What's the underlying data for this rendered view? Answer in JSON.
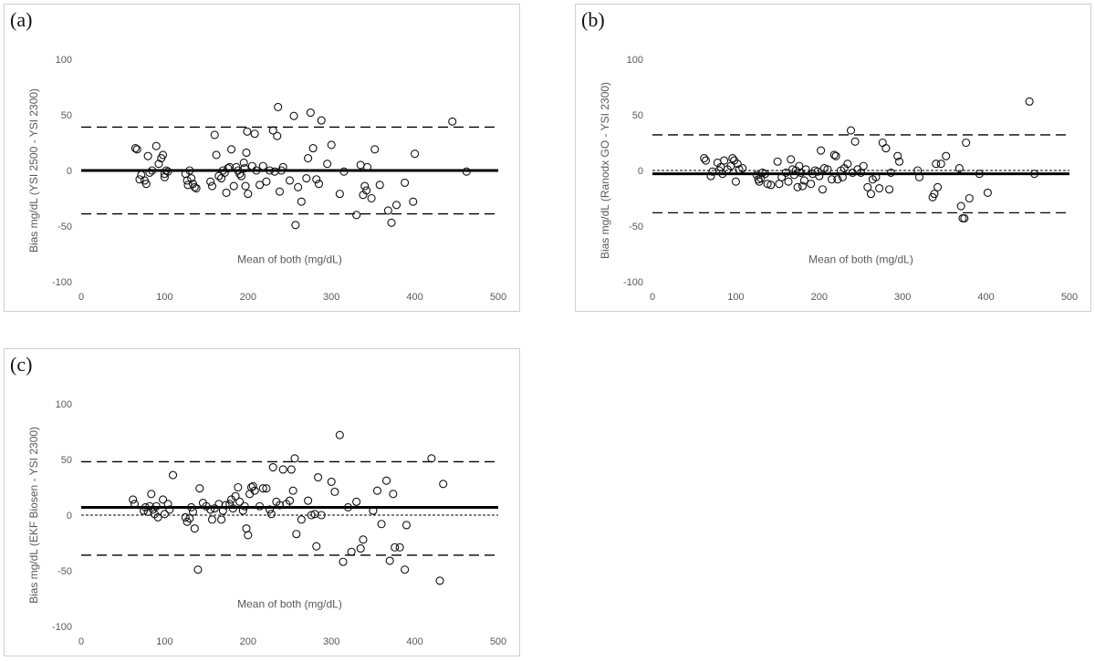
{
  "chart_data": [
    {
      "type": "scatter",
      "panel_label": "(a)",
      "xlabel": "Mean of both (mg/dL)",
      "ylabel": "Bias mg/dL (YSI  2500 - YSI 2300)",
      "xlim": [
        0,
        500
      ],
      "ylim": [
        -100,
        100
      ],
      "xticks": [
        "0",
        "100",
        "200",
        "300",
        "400",
        "500"
      ],
      "yticks": [
        "100",
        "50",
        "0",
        "-50",
        "-100"
      ],
      "reference_lines": [
        {
          "value": 0,
          "style": "solid-thick"
        },
        {
          "value": 39,
          "style": "dashed"
        },
        {
          "value": -39,
          "style": "dashed"
        }
      ],
      "points": [
        [
          65,
          20
        ],
        [
          67,
          19
        ],
        [
          70,
          -8
        ],
        [
          72,
          -4
        ],
        [
          76,
          -9
        ],
        [
          78,
          -12
        ],
        [
          80,
          13
        ],
        [
          82,
          -2
        ],
        [
          85,
          0
        ],
        [
          90,
          22
        ],
        [
          93,
          6
        ],
        [
          96,
          11
        ],
        [
          98,
          14
        ],
        [
          100,
          -3
        ],
        [
          100,
          -6
        ],
        [
          102,
          0
        ],
        [
          104,
          -1
        ],
        [
          125,
          -3
        ],
        [
          127,
          -9
        ],
        [
          128,
          -13
        ],
        [
          130,
          0
        ],
        [
          132,
          -7
        ],
        [
          134,
          -12
        ],
        [
          136,
          -15
        ],
        [
          138,
          -16
        ],
        [
          155,
          -10
        ],
        [
          157,
          -14
        ],
        [
          160,
          32
        ],
        [
          162,
          14
        ],
        [
          165,
          -5
        ],
        [
          168,
          -7
        ],
        [
          170,
          0
        ],
        [
          172,
          -2
        ],
        [
          174,
          -20
        ],
        [
          176,
          2
        ],
        [
          178,
          3
        ],
        [
          180,
          19
        ],
        [
          183,
          -14
        ],
        [
          186,
          3
        ],
        [
          188,
          0
        ],
        [
          190,
          -3
        ],
        [
          192,
          -5
        ],
        [
          195,
          7
        ],
        [
          196,
          2
        ],
        [
          197,
          -14
        ],
        [
          198,
          16
        ],
        [
          199,
          35
        ],
        [
          200,
          -21
        ],
        [
          205,
          4
        ],
        [
          208,
          33
        ],
        [
          210,
          0
        ],
        [
          214,
          -13
        ],
        [
          218,
          4
        ],
        [
          222,
          -10
        ],
        [
          226,
          0
        ],
        [
          230,
          36
        ],
        [
          232,
          -1
        ],
        [
          235,
          31
        ],
        [
          236,
          57
        ],
        [
          238,
          -19
        ],
        [
          240,
          0
        ],
        [
          242,
          3
        ],
        [
          250,
          -9
        ],
        [
          255,
          49
        ],
        [
          257,
          -49
        ],
        [
          260,
          -15
        ],
        [
          264,
          -28
        ],
        [
          270,
          -7
        ],
        [
          272,
          11
        ],
        [
          275,
          52
        ],
        [
          278,
          20
        ],
        [
          282,
          -8
        ],
        [
          285,
          -12
        ],
        [
          288,
          45
        ],
        [
          295,
          6
        ],
        [
          300,
          23
        ],
        [
          310,
          -21
        ],
        [
          315,
          -1
        ],
        [
          330,
          -40
        ],
        [
          335,
          5
        ],
        [
          338,
          -22
        ],
        [
          340,
          -14
        ],
        [
          342,
          -18
        ],
        [
          343,
          3
        ],
        [
          348,
          -25
        ],
        [
          352,
          19
        ],
        [
          358,
          -13
        ],
        [
          368,
          -36
        ],
        [
          372,
          -47
        ],
        [
          378,
          -31
        ],
        [
          388,
          -11
        ],
        [
          398,
          -28
        ],
        [
          400,
          15
        ],
        [
          445,
          44
        ],
        [
          462,
          -1
        ]
      ]
    },
    {
      "type": "scatter",
      "panel_label": "(b)",
      "xlabel": "Mean of both (mg/dL)",
      "ylabel": "Bias mg/dL (Ranodx GO - YSI 2300)",
      "xlim": [
        0,
        500
      ],
      "ylim": [
        -100,
        100
      ],
      "xticks": [
        "0",
        "100",
        "200",
        "300",
        "400",
        "500"
      ],
      "yticks": [
        "100",
        "50",
        "0",
        "-50",
        "-100"
      ],
      "reference_lines": [
        {
          "value": -3,
          "style": "solid-thick"
        },
        {
          "value": 0,
          "style": "dotted"
        },
        {
          "value": 32,
          "style": "dashed"
        },
        {
          "value": -38,
          "style": "dashed"
        }
      ],
      "points": [
        [
          62,
          11
        ],
        [
          64,
          9
        ],
        [
          70,
          -5
        ],
        [
          72,
          -1
        ],
        [
          78,
          7
        ],
        [
          80,
          0
        ],
        [
          82,
          3
        ],
        [
          84,
          -3
        ],
        [
          86,
          9
        ],
        [
          90,
          1
        ],
        [
          94,
          4
        ],
        [
          96,
          11
        ],
        [
          98,
          9
        ],
        [
          100,
          -10
        ],
        [
          102,
          6
        ],
        [
          104,
          1
        ],
        [
          108,
          2
        ],
        [
          125,
          -4
        ],
        [
          127,
          -8
        ],
        [
          128,
          -10
        ],
        [
          130,
          -7
        ],
        [
          132,
          -2
        ],
        [
          135,
          -3
        ],
        [
          138,
          -12
        ],
        [
          142,
          -13
        ],
        [
          150,
          8
        ],
        [
          152,
          -12
        ],
        [
          155,
          -6
        ],
        [
          160,
          -2
        ],
        [
          163,
          -10
        ],
        [
          166,
          10
        ],
        [
          168,
          1
        ],
        [
          170,
          -4
        ],
        [
          172,
          0
        ],
        [
          174,
          -15
        ],
        [
          176,
          4
        ],
        [
          178,
          -2
        ],
        [
          180,
          -14
        ],
        [
          182,
          -9
        ],
        [
          184,
          1
        ],
        [
          190,
          -12
        ],
        [
          192,
          -3
        ],
        [
          195,
          0
        ],
        [
          198,
          -1
        ],
        [
          200,
          -5
        ],
        [
          202,
          18
        ],
        [
          204,
          -17
        ],
        [
          206,
          2
        ],
        [
          210,
          1
        ],
        [
          215,
          -8
        ],
        [
          218,
          14
        ],
        [
          220,
          13
        ],
        [
          222,
          -8
        ],
        [
          226,
          0
        ],
        [
          228,
          -6
        ],
        [
          230,
          2
        ],
        [
          234,
          6
        ],
        [
          238,
          36
        ],
        [
          240,
          -2
        ],
        [
          243,
          26
        ],
        [
          246,
          1
        ],
        [
          250,
          -2
        ],
        [
          253,
          4
        ],
        [
          258,
          -15
        ],
        [
          262,
          -21
        ],
        [
          264,
          -8
        ],
        [
          268,
          -6
        ],
        [
          272,
          -16
        ],
        [
          276,
          25
        ],
        [
          280,
          20
        ],
        [
          284,
          -17
        ],
        [
          286,
          -2
        ],
        [
          294,
          13
        ],
        [
          296,
          8
        ],
        [
          318,
          0
        ],
        [
          320,
          -6
        ],
        [
          336,
          -24
        ],
        [
          338,
          -21
        ],
        [
          340,
          6
        ],
        [
          342,
          -15
        ],
        [
          346,
          6
        ],
        [
          352,
          13
        ],
        [
          368,
          2
        ],
        [
          370,
          -32
        ],
        [
          372,
          -43
        ],
        [
          374,
          -43
        ],
        [
          376,
          25
        ],
        [
          380,
          -25
        ],
        [
          392,
          -3
        ],
        [
          402,
          -20
        ],
        [
          452,
          62
        ],
        [
          458,
          -3
        ]
      ]
    },
    {
      "type": "scatter",
      "panel_label": "(c)",
      "xlabel": "Mean of both (mg/dL)",
      "ylabel": "Bias mg/dL (EKF Biosen - YSI 2300)",
      "xlim": [
        0,
        500
      ],
      "ylim": [
        -100,
        100
      ],
      "xticks": [
        "0",
        "100",
        "200",
        "300",
        "400",
        "500"
      ],
      "yticks": [
        "100",
        "50",
        "0",
        "-50",
        "-100"
      ],
      "reference_lines": [
        {
          "value": 7,
          "style": "solid-thick"
        },
        {
          "value": 0,
          "style": "dotted"
        },
        {
          "value": 48,
          "style": "dashed"
        },
        {
          "value": -36,
          "style": "dashed"
        }
      ],
      "points": [
        [
          62,
          14
        ],
        [
          64,
          10
        ],
        [
          75,
          4
        ],
        [
          77,
          7
        ],
        [
          80,
          3
        ],
        [
          82,
          8
        ],
        [
          84,
          19
        ],
        [
          86,
          5
        ],
        [
          88,
          1
        ],
        [
          90,
          8
        ],
        [
          92,
          -2
        ],
        [
          98,
          14
        ],
        [
          100,
          1
        ],
        [
          104,
          10
        ],
        [
          106,
          5
        ],
        [
          110,
          36
        ],
        [
          125,
          -2
        ],
        [
          127,
          -6
        ],
        [
          130,
          -3
        ],
        [
          132,
          7
        ],
        [
          134,
          3
        ],
        [
          136,
          -12
        ],
        [
          140,
          -49
        ],
        [
          142,
          24
        ],
        [
          146,
          11
        ],
        [
          150,
          8
        ],
        [
          155,
          5
        ],
        [
          157,
          -4
        ],
        [
          160,
          6
        ],
        [
          165,
          10
        ],
        [
          168,
          -4
        ],
        [
          170,
          4
        ],
        [
          173,
          9
        ],
        [
          178,
          10
        ],
        [
          180,
          14
        ],
        [
          182,
          6
        ],
        [
          185,
          17
        ],
        [
          188,
          25
        ],
        [
          190,
          12
        ],
        [
          194,
          4
        ],
        [
          196,
          8
        ],
        [
          198,
          -12
        ],
        [
          200,
          -18
        ],
        [
          202,
          19
        ],
        [
          204,
          25
        ],
        [
          206,
          26
        ],
        [
          208,
          22
        ],
        [
          214,
          8
        ],
        [
          218,
          24
        ],
        [
          222,
          24
        ],
        [
          226,
          5
        ],
        [
          228,
          1
        ],
        [
          230,
          43
        ],
        [
          234,
          12
        ],
        [
          238,
          9
        ],
        [
          242,
          41
        ],
        [
          246,
          10
        ],
        [
          250,
          13
        ],
        [
          252,
          41
        ],
        [
          254,
          22
        ],
        [
          256,
          51
        ],
        [
          258,
          -17
        ],
        [
          264,
          -4
        ],
        [
          272,
          13
        ],
        [
          276,
          0
        ],
        [
          280,
          1
        ],
        [
          282,
          -28
        ],
        [
          284,
          34
        ],
        [
          288,
          0
        ],
        [
          300,
          30
        ],
        [
          304,
          21
        ],
        [
          310,
          72
        ],
        [
          314,
          -42
        ],
        [
          320,
          7
        ],
        [
          324,
          -33
        ],
        [
          330,
          12
        ],
        [
          335,
          -30
        ],
        [
          338,
          -22
        ],
        [
          350,
          4
        ],
        [
          355,
          22
        ],
        [
          360,
          -8
        ],
        [
          366,
          31
        ],
        [
          370,
          -41
        ],
        [
          374,
          19
        ],
        [
          376,
          -29
        ],
        [
          382,
          -29
        ],
        [
          388,
          -49
        ],
        [
          390,
          -9
        ],
        [
          420,
          51
        ],
        [
          430,
          -59
        ],
        [
          434,
          28
        ]
      ]
    }
  ]
}
